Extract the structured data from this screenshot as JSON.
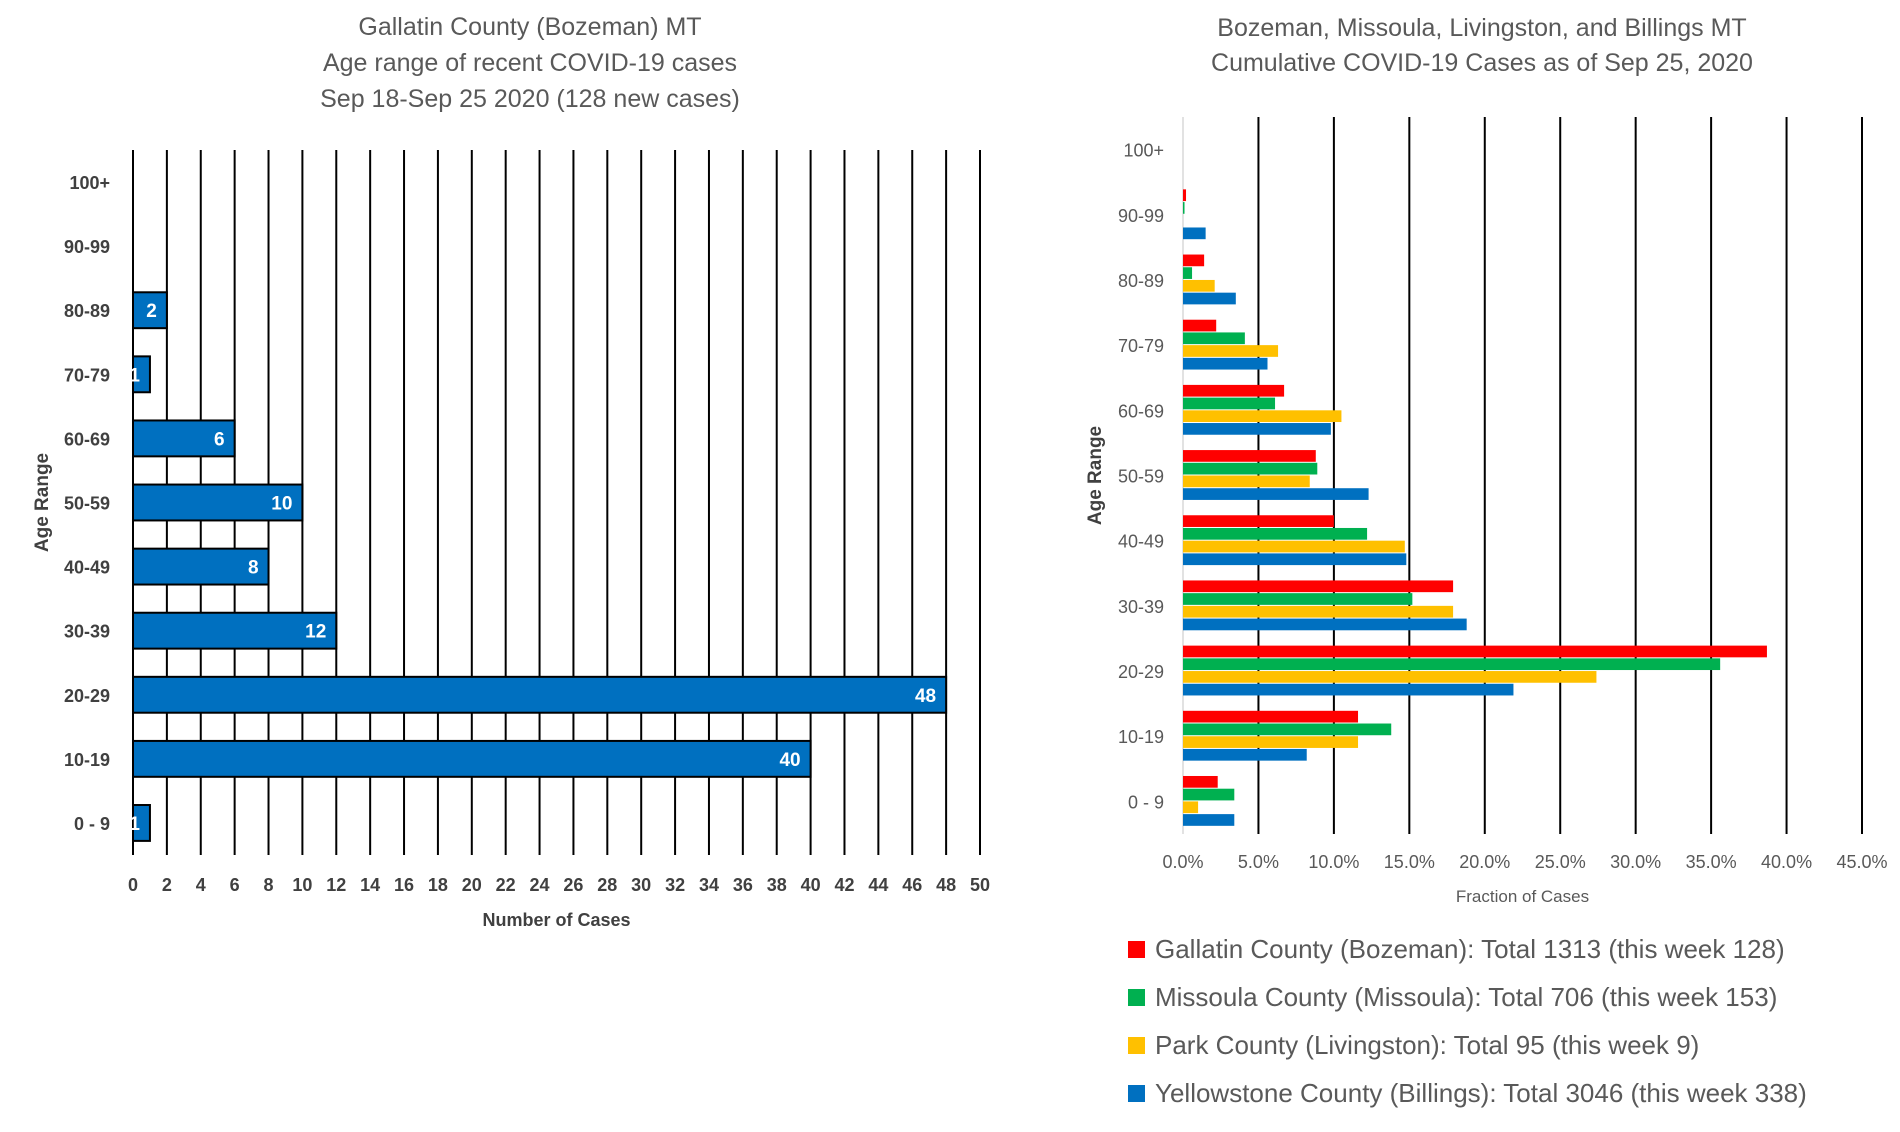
{
  "chart_data": [
    {
      "type": "bar",
      "orientation": "horizontal",
      "title": [
        "Gallatin County (Bozeman) MT",
        "Age range of recent COVID-19 cases",
        "Sep 18-Sep 25 2020 (128 new cases)"
      ],
      "xlabel": "Number of Cases",
      "ylabel": "Age Range",
      "xlim": [
        0,
        50
      ],
      "xticks": [
        "0",
        "2",
        "4",
        "6",
        "8",
        "10",
        "12",
        "14",
        "16",
        "18",
        "20",
        "22",
        "24",
        "26",
        "28",
        "30",
        "32",
        "34",
        "36",
        "38",
        "40",
        "42",
        "44",
        "46",
        "48",
        "50"
      ],
      "categories": [
        "0 - 9",
        "10-19",
        "20-29",
        "30-39",
        "40-49",
        "50-59",
        "60-69",
        "70-79",
        "80-89",
        "90-99",
        "100+"
      ],
      "values": [
        1,
        40,
        48,
        12,
        8,
        10,
        6,
        1,
        2,
        0,
        0
      ],
      "data_labels": [
        "1",
        "40",
        "48",
        "12",
        "8",
        "10",
        "6",
        "1",
        "2",
        "",
        ""
      ],
      "color": "#0070C0",
      "grid": true
    },
    {
      "type": "bar",
      "orientation": "horizontal",
      "title": [
        "Bozeman, Missoula, Livingston, and Billings MT",
        "Cumulative COVID-19 Cases as of Sep 25, 2020"
      ],
      "xlabel": "Fraction of Cases",
      "ylabel": "Age Range",
      "xlim": [
        0,
        45
      ],
      "xticks": [
        "0.0%",
        "5.0%",
        "10.0%",
        "15.0%",
        "20.0%",
        "25.0%",
        "30.0%",
        "35.0%",
        "40.0%",
        "45.0%"
      ],
      "categories": [
        "0 - 9",
        "10-19",
        "20-29",
        "30-39",
        "40-49",
        "50-59",
        "60-69",
        "70-79",
        "80-89",
        "90-99",
        "100+"
      ],
      "series": [
        {
          "name": "Gallatin County (Bozeman): Total 1313 (this week 128)",
          "color": "#FF0000",
          "values": [
            2.3,
            11.6,
            38.7,
            17.9,
            10.0,
            8.8,
            6.7,
            2.2,
            1.4,
            0.2,
            0
          ]
        },
        {
          "name": "Missoula County (Missoula): Total 706 (this week 153)",
          "color": "#00B050",
          "values": [
            3.4,
            13.8,
            35.6,
            15.2,
            12.2,
            8.9,
            6.1,
            4.1,
            0.6,
            0.1,
            0
          ]
        },
        {
          "name": "Park County (Livingston): Total 95 (this week 9)",
          "color": "#FFC000",
          "values": [
            1.0,
            11.6,
            27.4,
            17.9,
            14.7,
            8.4,
            10.5,
            6.3,
            2.1,
            0,
            0
          ]
        },
        {
          "name": "Yellowstone County (Billings): Total 3046 (this week 338)",
          "color": "#0070C0",
          "values": [
            3.4,
            8.2,
            21.9,
            18.8,
            14.8,
            12.3,
            9.8,
            5.6,
            3.5,
            1.5,
            0
          ]
        }
      ],
      "legend_position": "bottom",
      "grid": true
    }
  ]
}
